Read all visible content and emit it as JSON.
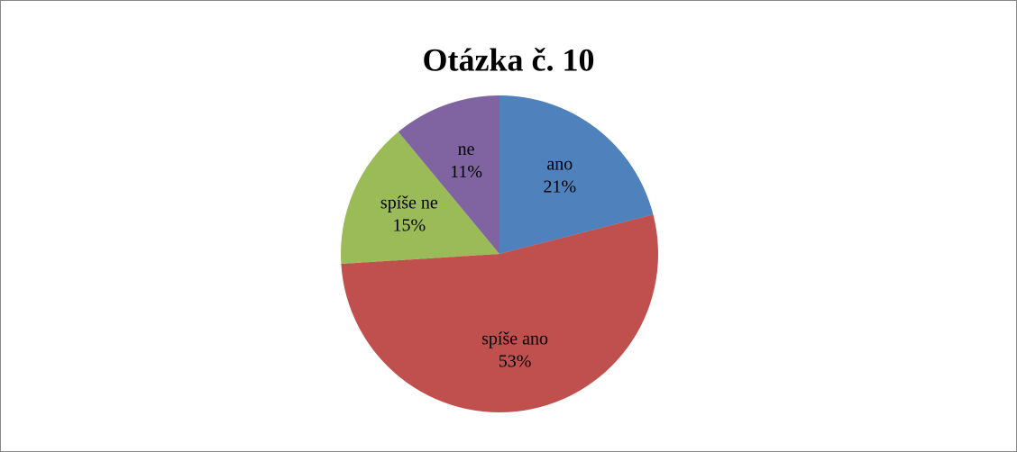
{
  "chart_data": {
    "type": "pie",
    "title": "Otázka č. 10",
    "categories": [
      "ano",
      "spíše ano",
      "spíše ne",
      "ne"
    ],
    "values": [
      21,
      53,
      15,
      11
    ],
    "value_labels": [
      "21%",
      "53%",
      "15%",
      "11%"
    ],
    "colors": [
      "#4f81bd",
      "#c0504d",
      "#9bbb59",
      "#8064a2"
    ]
  }
}
